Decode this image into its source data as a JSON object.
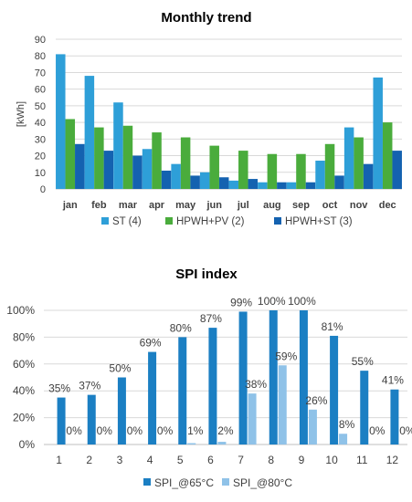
{
  "chart_data": [
    {
      "type": "bar",
      "title": "Monthly trend",
      "ylabel": "[kWh]",
      "xlabel": "",
      "ylim": [
        0,
        90
      ],
      "yticks": [
        0,
        10,
        20,
        30,
        40,
        50,
        60,
        70,
        80,
        90
      ],
      "grid": true,
      "legend_position": "bottom",
      "categories": [
        "jan",
        "feb",
        "mar",
        "apr",
        "may",
        "jun",
        "jul",
        "aug",
        "sep",
        "oct",
        "nov",
        "dec"
      ],
      "series": [
        {
          "name": "ST (4)",
          "color": "#2e9fd8",
          "values": [
            81,
            68,
            52,
            24,
            15,
            10,
            5,
            4,
            4,
            17,
            37,
            67
          ]
        },
        {
          "name": "HPWH+PV (2)",
          "color": "#4aac3c",
          "values": [
            42,
            37,
            38,
            34,
            31,
            26,
            23,
            21,
            21,
            27,
            31,
            40
          ]
        },
        {
          "name": "HPWH+ST (3)",
          "color": "#1462b0",
          "values": [
            27,
            23,
            20,
            11,
            8,
            7,
            6,
            4,
            4,
            8,
            15,
            23
          ]
        }
      ]
    },
    {
      "type": "bar",
      "title": "SPI index",
      "xlabel": "",
      "ylabel": "",
      "ylim": [
        0,
        100
      ],
      "yticks": [
        "0%",
        "20%",
        "40%",
        "60%",
        "80%",
        "100%"
      ],
      "grid": true,
      "legend_position": "bottom",
      "categories": [
        "1",
        "2",
        "3",
        "4",
        "5",
        "6",
        "7",
        "8",
        "9",
        "10",
        "11",
        "12"
      ],
      "series": [
        {
          "name": "SPI_@65°C",
          "color": "#1b7fc3",
          "values": [
            35,
            37,
            50,
            69,
            80,
            87,
            99,
            100,
            100,
            81,
            55,
            41
          ],
          "labels": [
            "35%",
            "37%",
            "50%",
            "69%",
            "80%",
            "87%",
            "99%",
            "100%",
            "100%",
            "81%",
            "55%",
            "41%"
          ]
        },
        {
          "name": "SPI_@80°C",
          "color": "#8fc2e8",
          "values": [
            0,
            0,
            0,
            0,
            1,
            2,
            38,
            59,
            26,
            8,
            0,
            0
          ],
          "labels": [
            "0%",
            "0%",
            "0%",
            "0%",
            "1%",
            "2%",
            "38%",
            "59%",
            "26%",
            "8%",
            "0%",
            "0%"
          ]
        }
      ]
    }
  ]
}
